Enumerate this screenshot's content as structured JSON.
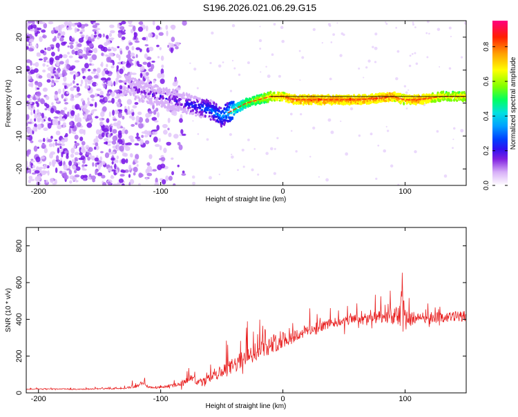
{
  "title": "S196.2026.021.06.29.G15",
  "chart_data": [
    {
      "type": "heatmap",
      "title": "S196.2026.021.06.29.G15",
      "xlabel": "Height of straight line (km)",
      "ylabel": "Frequency (Hz)",
      "xlim": [
        -210,
        150
      ],
      "ylim": [
        -25,
        25
      ],
      "xticks": [
        -200,
        -100,
        0,
        100
      ],
      "yticks": [
        -20,
        -10,
        0,
        10,
        20
      ],
      "colorbar": {
        "label": "Normalized spectral amplitude",
        "range": [
          0,
          0.95
        ],
        "ticks": [
          0.0,
          0.2,
          0.4,
          0.6,
          0.8
        ],
        "colormap": [
          "#ffffff",
          "#d8b0f8",
          "#8020e0",
          "#3010f0",
          "#0040ff",
          "#00a0ff",
          "#00e0e0",
          "#00ff60",
          "#80ff00",
          "#ffff00",
          "#ffa000",
          "#ff2000",
          "#ff0080"
        ]
      },
      "ridge": {
        "x": [
          -130,
          -120,
          -110,
          -100,
          -90,
          -80,
          -70,
          -60,
          -50,
          -40,
          -30,
          -20,
          -10,
          0,
          10,
          20,
          40,
          60,
          80,
          90,
          100,
          110,
          120,
          130,
          150
        ],
        "frequency_hz": [
          6,
          4,
          3,
          2,
          1,
          0,
          -1,
          -2,
          -4,
          -2,
          0,
          1,
          2,
          2,
          1,
          1,
          1,
          1,
          1.5,
          2,
          1,
          1,
          1.5,
          2,
          2
        ],
        "peak_amplitude": [
          0.15,
          0.2,
          0.2,
          0.25,
          0.25,
          0.3,
          0.35,
          0.4,
          0.45,
          0.6,
          0.7,
          0.75,
          0.8,
          0.85,
          0.9,
          0.9,
          0.9,
          0.9,
          0.9,
          0.9,
          0.85,
          0.9,
          0.85,
          0.8,
          0.8
        ]
      }
    },
    {
      "type": "line",
      "xlabel": "Height of straight line (km)",
      "ylabel": "SNR (10 * v/v)",
      "xlim": [
        -210,
        150
      ],
      "ylim": [
        0,
        900
      ],
      "xticks": [
        -200,
        -100,
        0,
        100
      ],
      "yticks": [
        0,
        200,
        400,
        600,
        800
      ],
      "series": [
        {
          "name": "SNR",
          "color": "#e82020",
          "x": [
            -210,
            -190,
            -170,
            -150,
            -130,
            -120,
            -115,
            -110,
            -100,
            -90,
            -80,
            -75,
            -70,
            -60,
            -50,
            -40,
            -30,
            -20,
            -10,
            0,
            10,
            20,
            30,
            40,
            60,
            80,
            90,
            95,
            98,
            100,
            102,
            110,
            120,
            130,
            140,
            150
          ],
          "values": [
            20,
            22,
            20,
            22,
            25,
            35,
            55,
            30,
            30,
            40,
            60,
            90,
            50,
            80,
            110,
            150,
            190,
            230,
            260,
            290,
            310,
            340,
            360,
            380,
            400,
            410,
            410,
            420,
            430,
            420,
            400,
            410,
            415,
            410,
            415,
            420
          ],
          "noise_envelope": [
            10,
            10,
            12,
            12,
            15,
            40,
            50,
            25,
            20,
            30,
            60,
            70,
            50,
            90,
            140,
            180,
            200,
            180,
            200,
            180,
            150,
            130,
            110,
            100,
            110,
            140,
            150,
            300,
            470,
            330,
            200,
            110,
            110,
            110,
            110,
            120
          ]
        }
      ]
    }
  ]
}
